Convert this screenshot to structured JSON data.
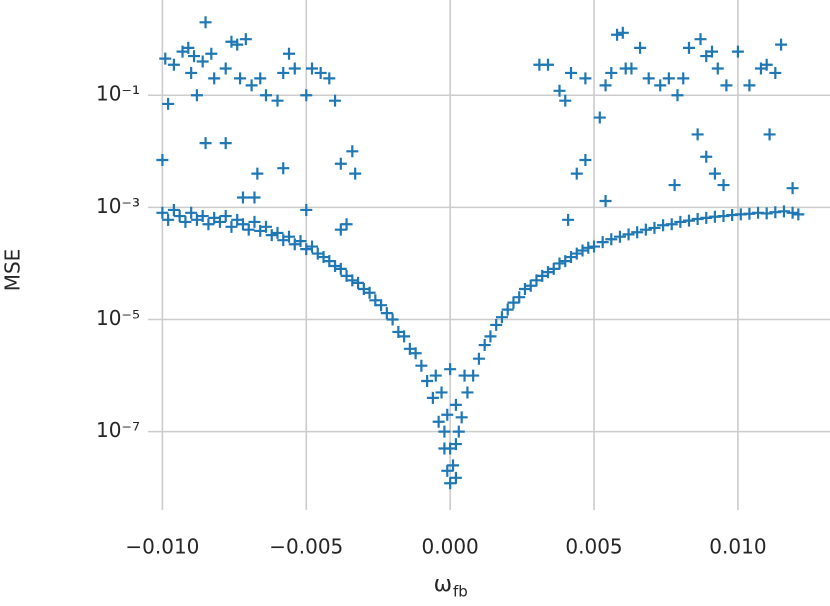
{
  "chart_data": {
    "type": "scatter",
    "marker": "+",
    "color": "#1f77b4",
    "ylabel": "MSE",
    "xlabel": {
      "symbol": "ω",
      "subscript": "fb"
    },
    "yscale": "log",
    "grid": true,
    "xlim": [
      -0.0105,
      0.0132
    ],
    "ylim": [
      4e-09,
      5
    ],
    "xticks": [
      {
        "value": -0.01,
        "label": "−0.010"
      },
      {
        "value": -0.005,
        "label": "−0.005"
      },
      {
        "value": 0,
        "label": "0.000"
      },
      {
        "value": 0.005,
        "label": "0.005"
      },
      {
        "value": 0.01,
        "label": "0.010"
      }
    ],
    "yticks": [
      {
        "value": 1e-07,
        "label": "10⁻⁷"
      },
      {
        "value": 1e-05,
        "label": "10⁻⁵"
      },
      {
        "value": 0.001,
        "label": "10⁻³"
      },
      {
        "value": 0.1,
        "label": "10⁻¹"
      }
    ],
    "x": [
      -0.01,
      -0.0098,
      -0.0096,
      -0.0094,
      -0.0092,
      -0.009,
      -0.0088,
      -0.0086,
      -0.0084,
      -0.0082,
      -0.008,
      -0.0078,
      -0.0076,
      -0.0074,
      -0.0072,
      -0.007,
      -0.0068,
      -0.0066,
      -0.0064,
      -0.0062,
      -0.006,
      -0.0058,
      -0.0056,
      -0.0054,
      -0.0052,
      -0.005,
      -0.0048,
      -0.0046,
      -0.0044,
      -0.0042,
      -0.004,
      -0.0038,
      -0.0036,
      -0.0034,
      -0.0032,
      -0.003,
      -0.0028,
      -0.0026,
      -0.0024,
      -0.0022,
      -0.002,
      -0.0018,
      -0.0016,
      -0.0014,
      -0.0012,
      -0.001,
      -0.0008,
      -0.0006,
      -0.0004,
      -0.0002,
      -0.0001,
      0.0,
      0.0001,
      0.0002,
      0.0004,
      0.0006,
      0.0008,
      0.001,
      0.0012,
      0.0014,
      0.0016,
      0.0018,
      0.002,
      0.0022,
      0.0024,
      0.0026,
      0.0028,
      0.003,
      0.0032,
      0.0034,
      0.0036,
      0.0038,
      0.004,
      0.0042,
      0.0044,
      0.0046,
      0.0048,
      0.005,
      0.0053,
      0.0056,
      0.0059,
      0.0062,
      0.0065,
      0.0068,
      0.0071,
      0.0074,
      0.0077,
      0.008,
      0.0083,
      0.0086,
      0.0089,
      0.0092,
      0.0095,
      0.0098,
      0.0101,
      0.0104,
      0.0107,
      0.011,
      0.0113,
      0.0116,
      0.0119,
      0.0121,
      0.0002,
      -0.0002,
      0.0003,
      -0.0001,
      0.0,
      0.0002,
      -0.0003,
      0.0005,
      -0.0005,
      0.0,
      -0.0099,
      -0.0098,
      -0.0096,
      -0.0093,
      -0.0091,
      -0.009,
      -0.0089,
      -0.0088,
      -0.0086,
      -0.0085,
      -0.0083,
      -0.0082,
      -0.0078,
      -0.0076,
      -0.0074,
      -0.0073,
      -0.0071,
      -0.0069,
      -0.0066,
      -0.0064,
      -0.006,
      -0.0058,
      -0.0056,
      -0.0054,
      -0.005,
      -0.0048,
      -0.0045,
      -0.0042,
      -0.004,
      -0.0085,
      -0.0078,
      -0.0067,
      -0.0058,
      -0.0072,
      -0.0068,
      -0.005,
      -0.0038,
      -0.0034,
      -0.0033,
      -0.01,
      -0.0036,
      -0.0038,
      0.0031,
      0.0034,
      0.0038,
      0.004,
      0.0042,
      0.0047,
      0.0052,
      0.0054,
      0.0056,
      0.0058,
      0.006,
      0.0061,
      0.0063,
      0.0066,
      0.0069,
      0.0073,
      0.0076,
      0.0079,
      0.0081,
      0.0083,
      0.0087,
      0.0089,
      0.0091,
      0.0093,
      0.0096,
      0.01,
      0.0104,
      0.0108,
      0.011,
      0.0113,
      0.0115,
      0.0111,
      0.0086,
      0.0089,
      0.0092,
      0.0095,
      0.0078,
      0.0054,
      0.0044,
      0.0047,
      0.0041,
      0.0119
    ],
    "values": [
      0.0008,
      0.0006,
      0.0009,
      0.0007,
      0.00055,
      0.0008,
      0.0006,
      0.0007,
      0.0005,
      0.00065,
      0.00055,
      0.0007,
      0.00045,
      0.0006,
      0.0005,
      0.0004,
      0.00055,
      0.00038,
      0.00045,
      0.00032,
      0.00035,
      0.00026,
      0.0003,
      0.00022,
      0.00025,
      0.00018,
      0.0002,
      0.00015,
      0.00013,
      0.00011,
      9e-05,
      8e-05,
      6e-05,
      5e-05,
      4.5e-05,
      3.5e-05,
      3e-05,
      2.2e-05,
      1.8e-05,
      1.3e-05,
      1e-05,
      6e-06,
      5e-06,
      3e-06,
      2.5e-06,
      1.5e-06,
      8e-07,
      4e-07,
      1.5e-07,
      5e-08,
      2e-08,
      1.2e-08,
      2.5e-08,
      6e-08,
      1.8e-07,
      5e-07,
      1e-06,
      2e-06,
      3.5e-06,
      5e-06,
      8e-06,
      1.1e-05,
      1.5e-05,
      2e-05,
      2.5e-05,
      3.5e-05,
      4e-05,
      5e-05,
      6e-05,
      7e-05,
      8e-05,
      0.0001,
      0.00011,
      0.00013,
      0.00015,
      0.00017,
      0.00019,
      0.0002,
      0.00024,
      0.00027,
      0.0003,
      0.00033,
      0.00036,
      0.0004,
      0.00043,
      0.00048,
      0.0005,
      0.00055,
      0.00058,
      0.00062,
      0.00065,
      0.00068,
      0.0007,
      0.00073,
      0.00075,
      0.00077,
      0.0008,
      0.00078,
      0.00082,
      0.00085,
      0.0008,
      0.00075,
      1.5e-08,
      1e-07,
      1e-07,
      2e-07,
      5e-08,
      3e-07,
      5e-07,
      1e-06,
      1e-06,
      1.3e-06,
      0.45,
      0.07,
      0.35,
      0.6,
      0.7,
      0.25,
      0.5,
      0.1,
      0.4,
      2.0,
      0.55,
      0.2,
      0.3,
      0.9,
      0.8,
      0.2,
      1.0,
      0.15,
      0.2,
      0.1,
      0.08,
      0.25,
      0.55,
      0.3,
      0.1,
      0.3,
      0.25,
      0.2,
      0.08,
      0.014,
      0.014,
      0.004,
      0.005,
      0.0015,
      0.0015,
      0.0009,
      0.006,
      0.01,
      0.004,
      0.007,
      0.0005,
      0.0004,
      0.35,
      0.35,
      0.12,
      0.08,
      0.25,
      0.2,
      0.04,
      0.15,
      0.25,
      1.2,
      1.3,
      0.3,
      0.3,
      0.7,
      0.2,
      0.15,
      0.2,
      0.1,
      0.2,
      0.7,
      1.0,
      0.5,
      0.6,
      0.3,
      0.15,
      0.6,
      0.15,
      0.3,
      0.35,
      0.25,
      0.8,
      0.02,
      0.02,
      0.008,
      0.004,
      0.0025,
      0.0025,
      0.0013,
      0.004,
      0.007,
      0.0006,
      0.0022
    ]
  }
}
